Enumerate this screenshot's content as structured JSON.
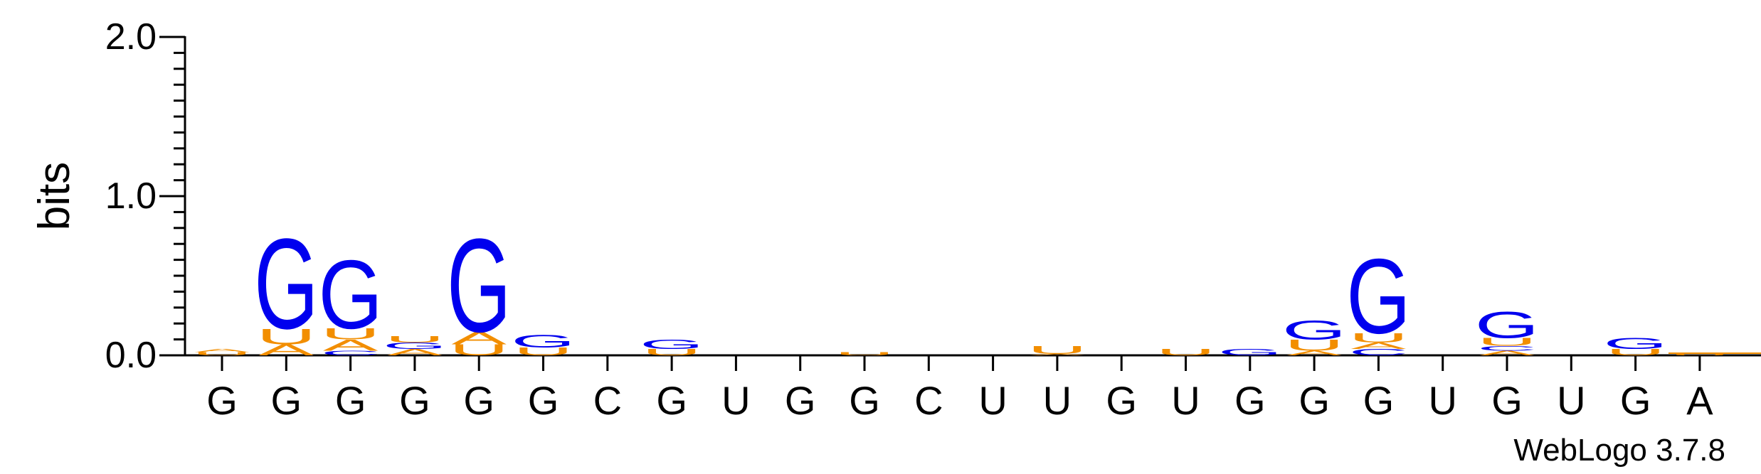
{
  "chart_data": {
    "type": "sequence-logo",
    "ylabel": "bits",
    "ylim": [
      0,
      2.0
    ],
    "yticks": [
      {
        "value": 0.0,
        "label": "0.0"
      },
      {
        "value": 1.0,
        "label": "1.0"
      },
      {
        "value": 2.0,
        "label": "2.0"
      }
    ],
    "xlabels": [
      "G",
      "G",
      "G",
      "G",
      "G",
      "G",
      "C",
      "G",
      "U",
      "G",
      "G",
      "C",
      "U",
      "U",
      "G",
      "U",
      "G",
      "G",
      "G",
      "U",
      "G",
      "U",
      "G",
      "A"
    ],
    "colors": {
      "G": "#0000ee",
      "U": "#f28e00",
      "A": "#f28e00",
      "C": "#0000ee"
    },
    "positions": [
      [
        {
          "base": "U",
          "bits": 0.02
        },
        {
          "base": "A",
          "bits": 0.02
        }
      ],
      [
        {
          "base": "A",
          "bits": 0.07
        },
        {
          "base": "U",
          "bits": 0.1
        },
        {
          "base": "G",
          "bits": 0.58
        }
      ],
      [
        {
          "base": "C",
          "bits": 0.03
        },
        {
          "base": "A",
          "bits": 0.07
        },
        {
          "base": "U",
          "bits": 0.07
        },
        {
          "base": "G",
          "bits": 0.44
        }
      ],
      [
        {
          "base": "A",
          "bits": 0.04
        },
        {
          "base": "G",
          "bits": 0.04
        },
        {
          "base": "U",
          "bits": 0.04
        }
      ],
      [
        {
          "base": "U",
          "bits": 0.07
        },
        {
          "base": "A",
          "bits": 0.08
        },
        {
          "base": "G",
          "bits": 0.6
        }
      ],
      [
        {
          "base": "U",
          "bits": 0.05
        },
        {
          "base": "G",
          "bits": 0.08
        }
      ],
      [],
      [
        {
          "base": "U",
          "bits": 0.04
        },
        {
          "base": "G",
          "bits": 0.06
        }
      ],
      [],
      [],
      [
        {
          "base": "U",
          "bits": 0.02
        }
      ],
      [],
      [],
      [
        {
          "base": "A",
          "bits": 0.01
        },
        {
          "base": "U",
          "bits": 0.05
        }
      ],
      [],
      [
        {
          "base": "U",
          "bits": 0.04
        }
      ],
      [
        {
          "base": "G",
          "bits": 0.04
        }
      ],
      [
        {
          "base": "A",
          "bits": 0.03
        },
        {
          "base": "U",
          "bits": 0.07
        },
        {
          "base": "G",
          "bits": 0.12
        }
      ],
      [
        {
          "base": "C",
          "bits": 0.04
        },
        {
          "base": "A",
          "bits": 0.04
        },
        {
          "base": "U",
          "bits": 0.06
        },
        {
          "base": "G",
          "bits": 0.48
        }
      ],
      [],
      [
        {
          "base": "A",
          "bits": 0.03
        },
        {
          "base": "C",
          "bits": 0.03
        },
        {
          "base": "U",
          "bits": 0.05
        },
        {
          "base": "G",
          "bits": 0.17
        }
      ],
      [],
      [
        {
          "base": "U",
          "bits": 0.04
        },
        {
          "base": "G",
          "bits": 0.07
        }
      ],
      [
        {
          "base": "U",
          "bits": 0.01
        }
      ]
    ]
  },
  "credit": "WebLogo 3.7.8"
}
